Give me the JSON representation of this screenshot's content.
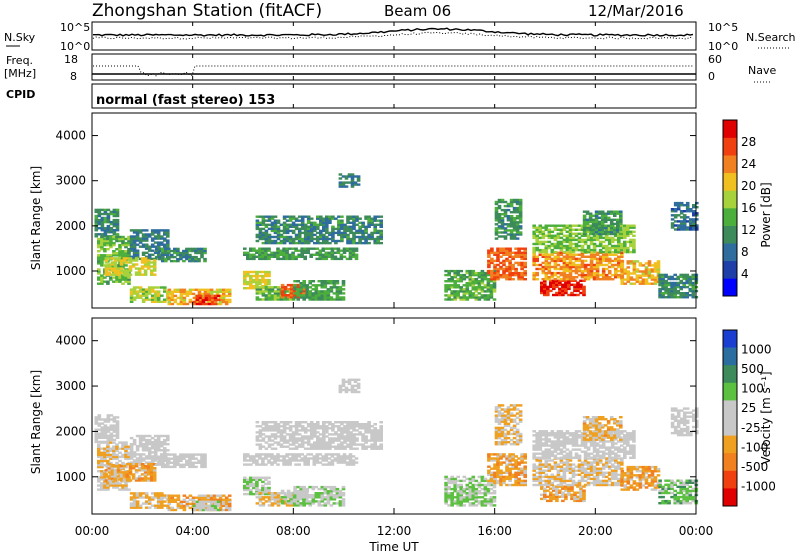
{
  "header": {
    "title": "Zhongshan Station (fitACF)",
    "beam": "Beam 06",
    "date": "12/Mar/2016"
  },
  "noise_panel": {
    "left_label": "N.Sky",
    "left_ticks": [
      "10^5",
      "10^0"
    ],
    "right_label": "N.Search",
    "right_ticks": [
      "10^5",
      "10^0"
    ]
  },
  "freq_panel": {
    "left_label_1": "Freq.",
    "left_label_2": "[MHz]",
    "left_ticks": [
      "18",
      "8"
    ],
    "right_label": "Nave",
    "right_ticks": [
      "60",
      "0"
    ]
  },
  "cpid": {
    "label": "CPID",
    "value": "normal (fast stereo) 153"
  },
  "power_panel": {
    "ylabel": "Slant Range [km]",
    "yticks": [
      "4000",
      "3000",
      "2000",
      "1000"
    ],
    "colorbar_label": "Power [dB]",
    "colorbar_ticks": [
      "28",
      "24",
      "20",
      "16",
      "12",
      "8",
      "4"
    ],
    "colors": [
      "#0000ff",
      "#1e3ea8",
      "#2e6d9e",
      "#3d8a5a",
      "#4caf3c",
      "#a8d23c",
      "#f0c020",
      "#f08020",
      "#f04010",
      "#e00000"
    ]
  },
  "velocity_panel": {
    "ylabel": "Slant Range [km]",
    "yticks": [
      "4000",
      "3000",
      "2000",
      "1000"
    ],
    "colorbar_label": "Velocity [m s⁻¹]",
    "colorbar_ticks": [
      "1000",
      "500",
      "100",
      "25",
      "-25",
      "-100",
      "-500",
      "-1000"
    ],
    "colors": [
      "#1a3fd0",
      "#2a6ea0",
      "#3d8a5a",
      "#5cc040",
      "#c8c8c8",
      "#c8c8c8",
      "#f0a020",
      "#f08020",
      "#f04010",
      "#e00000"
    ]
  },
  "xaxis": {
    "ticks": [
      "00:00",
      "04:00",
      "08:00",
      "12:00",
      "16:00",
      "20:00",
      "00:00"
    ],
    "label": "Time UT"
  },
  "chart_data": [
    {
      "type": "heatmap",
      "quantity": "power",
      "units": "dB",
      "x_range_hours": [
        0,
        24
      ],
      "y_range_km": [
        180,
        4500
      ],
      "clim": [
        0,
        30
      ],
      "regions": [
        {
          "t": [
            0.1,
            1.0
          ],
          "r": [
            1750,
            2350
          ],
          "value": 10
        },
        {
          "t": [
            0.2,
            1.5
          ],
          "r": [
            700,
            1750
          ],
          "value": 14
        },
        {
          "t": [
            1.5,
            3.0
          ],
          "r": [
            1250,
            1900
          ],
          "value": 9
        },
        {
          "t": [
            0.5,
            2.5
          ],
          "r": [
            900,
            1300
          ],
          "value": 18
        },
        {
          "t": [
            2.5,
            4.5
          ],
          "r": [
            1200,
            1500
          ],
          "value": 10
        },
        {
          "t": [
            1.5,
            3.0
          ],
          "r": [
            300,
            650
          ],
          "value": 17
        },
        {
          "t": [
            3.0,
            5.5
          ],
          "r": [
            250,
            600
          ],
          "value": 20
        },
        {
          "t": [
            4.0,
            5.0
          ],
          "r": [
            250,
            450
          ],
          "value": 26
        },
        {
          "t": [
            6.0,
            7.0
          ],
          "r": [
            600,
            1000
          ],
          "value": 18
        },
        {
          "t": [
            6.5,
            8.0
          ],
          "r": [
            350,
            650
          ],
          "value": 14
        },
        {
          "t": [
            7.5,
            8.5
          ],
          "r": [
            400,
            700
          ],
          "value": 24
        },
        {
          "t": [
            6.0,
            10.5
          ],
          "r": [
            1250,
            1500
          ],
          "value": 12
        },
        {
          "t": [
            6.5,
            11.5
          ],
          "r": [
            1600,
            2200
          ],
          "value": 10
        },
        {
          "t": [
            9.8,
            10.6
          ],
          "r": [
            2850,
            3150
          ],
          "value": 9
        },
        {
          "t": [
            8.0,
            10.0
          ],
          "r": [
            350,
            800
          ],
          "value": 12
        },
        {
          "t": [
            14.0,
            16.0
          ],
          "r": [
            350,
            1000
          ],
          "value": 13
        },
        {
          "t": [
            15.7,
            17.2
          ],
          "r": [
            800,
            1500
          ],
          "value": 24
        },
        {
          "t": [
            16.0,
            17.0
          ],
          "r": [
            1700,
            2600
          ],
          "value": 11
        },
        {
          "t": [
            17.8,
            19.5
          ],
          "r": [
            450,
            800
          ],
          "value": 27
        },
        {
          "t": [
            17.5,
            21.0
          ],
          "r": [
            800,
            1400
          ],
          "value": 22
        },
        {
          "t": [
            17.5,
            21.5
          ],
          "r": [
            1400,
            2000
          ],
          "value": 15
        },
        {
          "t": [
            19.5,
            21.0
          ],
          "r": [
            1800,
            2300
          ],
          "value": 11
        },
        {
          "t": [
            21.0,
            22.5
          ],
          "r": [
            700,
            1200
          ],
          "value": 20
        },
        {
          "t": [
            22.5,
            24.0
          ],
          "r": [
            400,
            900
          ],
          "value": 10
        },
        {
          "t": [
            23.0,
            24.0
          ],
          "r": [
            1900,
            2500
          ],
          "value": 8
        }
      ]
    },
    {
      "type": "heatmap",
      "quantity": "velocity",
      "units": "m s-1",
      "x_range_hours": [
        0,
        24
      ],
      "y_range_km": [
        180,
        4500
      ],
      "clim": [
        -1000,
        1000
      ],
      "regions": [
        {
          "t": [
            0.1,
            1.0
          ],
          "r": [
            1750,
            2350
          ],
          "value": 0
        },
        {
          "t": [
            0.2,
            1.5
          ],
          "r": [
            700,
            1750
          ],
          "value": -150
        },
        {
          "t": [
            1.5,
            3.0
          ],
          "r": [
            1250,
            1900
          ],
          "value": 0
        },
        {
          "t": [
            0.5,
            2.5
          ],
          "r": [
            900,
            1300
          ],
          "value": -300
        },
        {
          "t": [
            2.5,
            4.5
          ],
          "r": [
            1200,
            1500
          ],
          "value": 0
        },
        {
          "t": [
            1.5,
            3.0
          ],
          "r": [
            300,
            650
          ],
          "value": -200
        },
        {
          "t": [
            3.0,
            5.5
          ],
          "r": [
            250,
            600
          ],
          "value": -300
        },
        {
          "t": [
            4.0,
            5.0
          ],
          "r": [
            250,
            450
          ],
          "value": 150
        },
        {
          "t": [
            6.0,
            7.0
          ],
          "r": [
            600,
            1000
          ],
          "value": 200
        },
        {
          "t": [
            6.5,
            8.0
          ],
          "r": [
            350,
            650
          ],
          "value": -200
        },
        {
          "t": [
            7.5,
            8.5
          ],
          "r": [
            400,
            700
          ],
          "value": 150
        },
        {
          "t": [
            6.0,
            10.5
          ],
          "r": [
            1250,
            1500
          ],
          "value": 0
        },
        {
          "t": [
            6.5,
            11.5
          ],
          "r": [
            1600,
            2200
          ],
          "value": 0
        },
        {
          "t": [
            9.8,
            10.6
          ],
          "r": [
            2850,
            3150
          ],
          "value": 0
        },
        {
          "t": [
            8.0,
            10.0
          ],
          "r": [
            350,
            800
          ],
          "value": 150
        },
        {
          "t": [
            14.0,
            16.0
          ],
          "r": [
            350,
            1000
          ],
          "value": 200
        },
        {
          "t": [
            15.7,
            17.2
          ],
          "r": [
            800,
            1500
          ],
          "value": -300
        },
        {
          "t": [
            16.0,
            17.0
          ],
          "r": [
            1700,
            2600
          ],
          "value": -200
        },
        {
          "t": [
            17.8,
            19.5
          ],
          "r": [
            450,
            800
          ],
          "value": -300
        },
        {
          "t": [
            17.5,
            21.0
          ],
          "r": [
            800,
            1400
          ],
          "value": -150
        },
        {
          "t": [
            17.5,
            21.5
          ],
          "r": [
            1400,
            2000
          ],
          "value": 0
        },
        {
          "t": [
            19.5,
            21.0
          ],
          "r": [
            1800,
            2300
          ],
          "value": -250
        },
        {
          "t": [
            21.0,
            22.5
          ],
          "r": [
            700,
            1200
          ],
          "value": -300
        },
        {
          "t": [
            22.5,
            24.0
          ],
          "r": [
            400,
            900
          ],
          "value": 300
        },
        {
          "t": [
            23.0,
            24.0
          ],
          "r": [
            1900,
            2500
          ],
          "value": 0
        }
      ]
    }
  ]
}
